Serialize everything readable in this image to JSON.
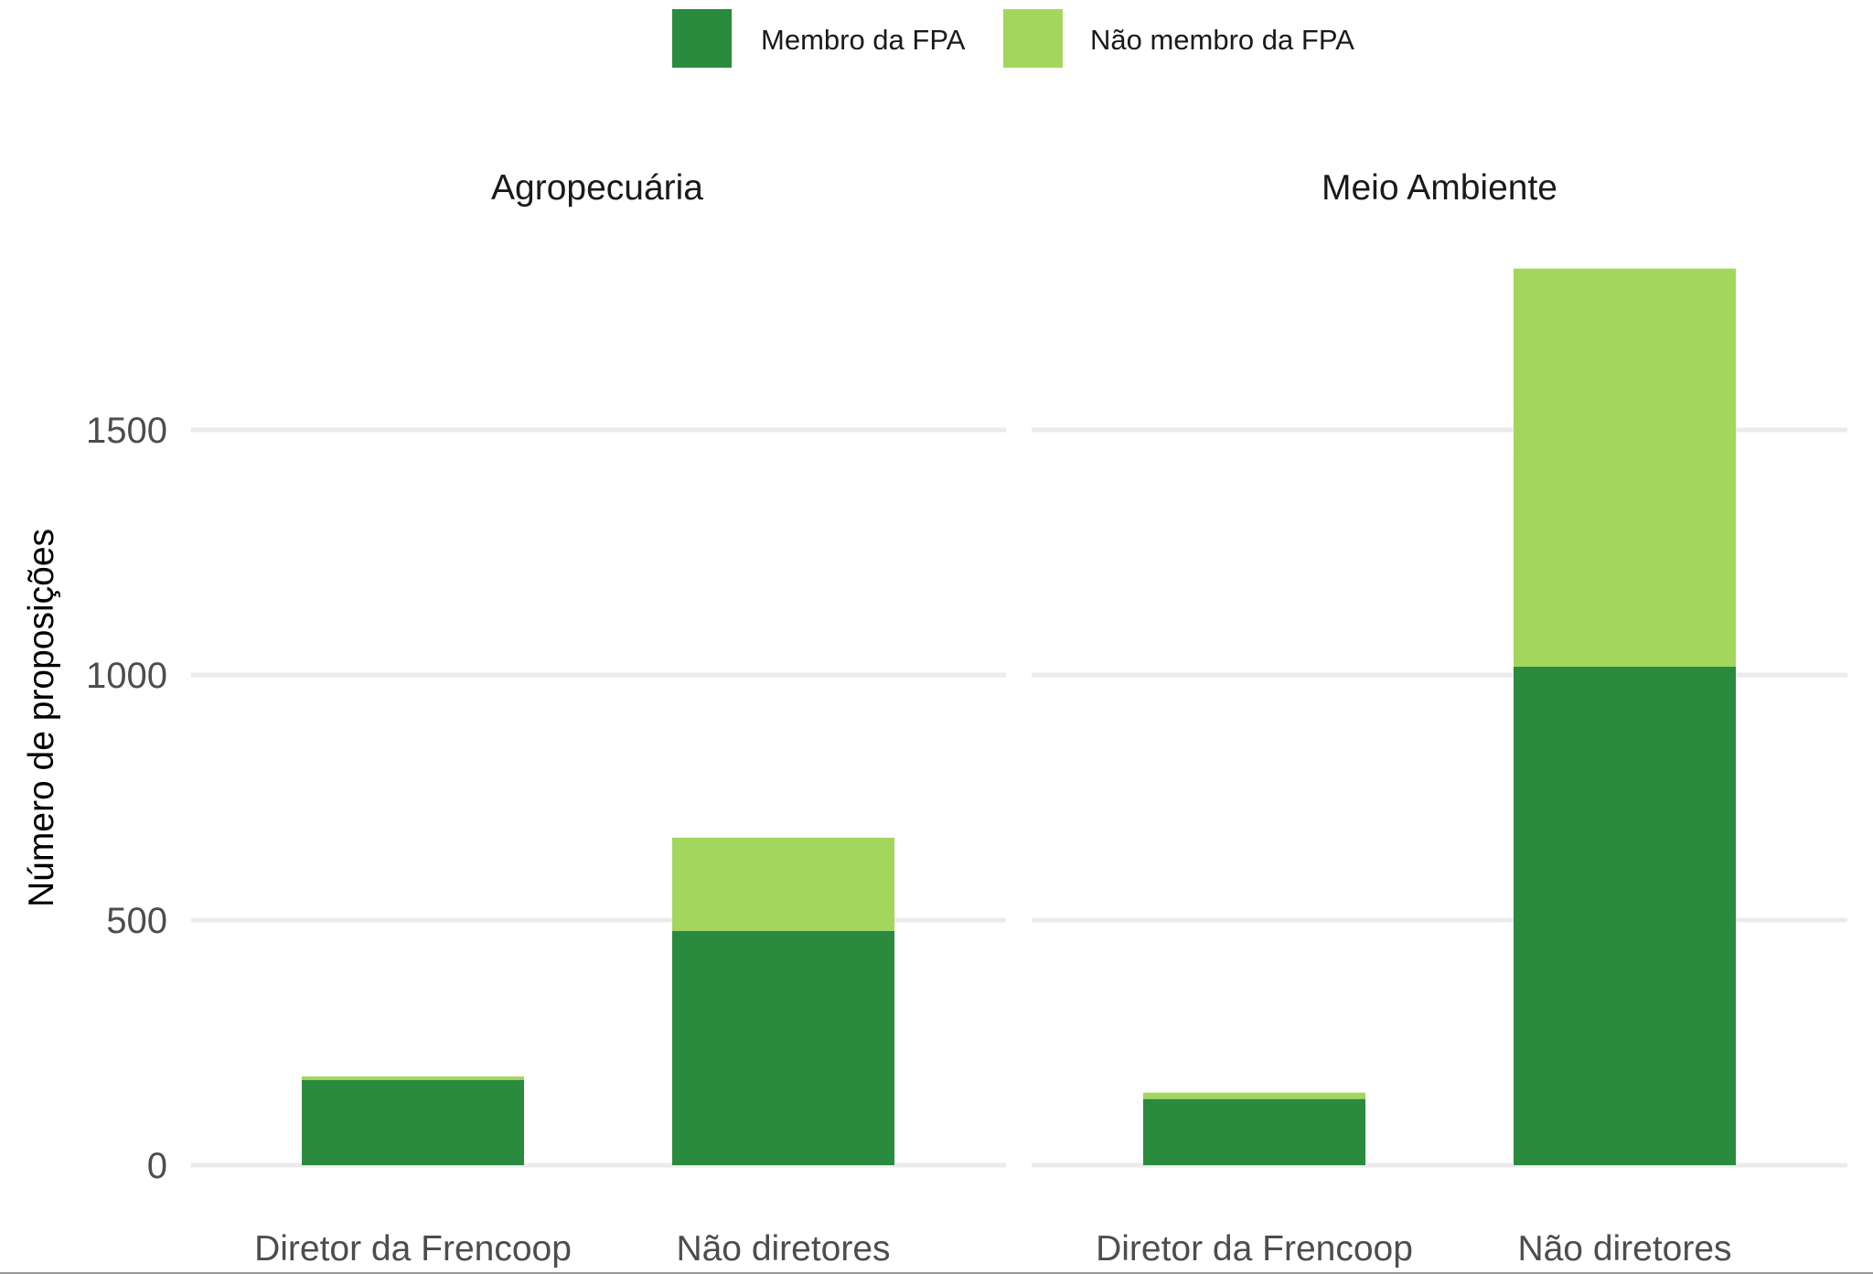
{
  "chart_data": {
    "type": "bar",
    "stacked": true,
    "ylabel": "Número de proposições",
    "xlabel": "",
    "ylim": [
      0,
      1850
    ],
    "yticks": [
      "0",
      "500",
      "1000",
      "1500"
    ],
    "grid": true,
    "legend_position": "top",
    "legend": [
      "Membro da FPA",
      "Não membro da FPA"
    ],
    "colors": {
      "Membro da FPA": "#2a8a3e",
      "Não membro da FPA": "#a3d65c"
    },
    "categories": [
      "Diretor da Frencoop",
      "Não diretores"
    ],
    "panels": [
      {
        "title": "Agropecuária",
        "series": [
          {
            "name": "Membro da FPA",
            "values": [
              174,
              478
            ]
          },
          {
            "name": "Não membro da FPA",
            "values": [
              7,
              190
            ]
          }
        ]
      },
      {
        "title": "Meio Ambiente",
        "series": [
          {
            "name": "Membro da FPA",
            "values": [
              135,
              1017
            ]
          },
          {
            "name": "Não membro da FPA",
            "values": [
              13,
              812
            ]
          }
        ]
      }
    ]
  }
}
